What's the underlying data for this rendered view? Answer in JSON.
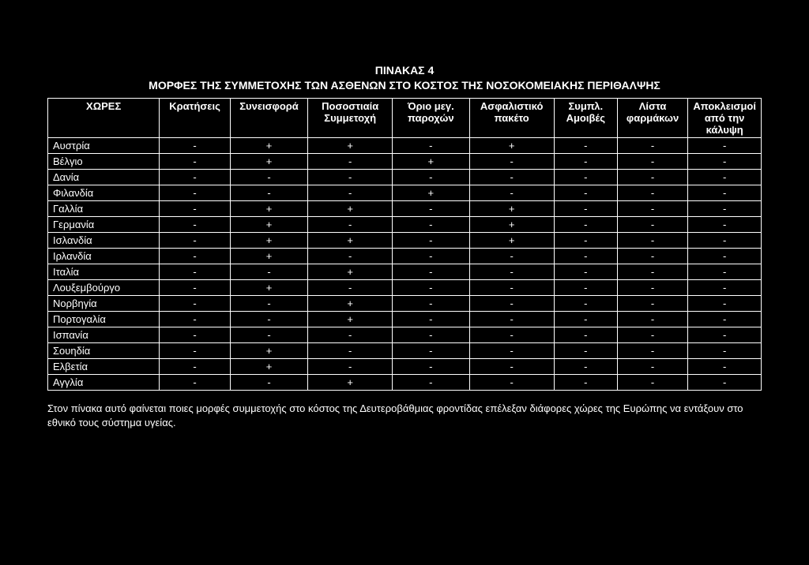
{
  "title_line1": "ΠΙΝΑΚΑΣ 4",
  "title_line2": "ΜΟΡΦΕΣ ΤΗΣ ΣΥΜΜΕΤΟΧΗΣ ΤΩΝ ΑΣΘΕΝΩΝ ΣΤΟ ΚΟΣΤΟΣ ΤΗΣ ΝΟΣΟΚΟΜΕΙΑΚΗΣ ΠΕΡΙΘΑΛΨΗΣ",
  "caption": "Στον πίνακα αυτό φαίνεται ποιες μορφές συμμετοχής στο κόστος της Δευτεροβάθμιας φροντίδας επέλεξαν διάφορες χώρες της Ευρώπης να εντάξουν στο εθνικό τους σύστημα υγείας.",
  "columns": [
    "ΧΩΡΕΣ",
    "Κρατήσεις",
    "Συνεισφορά",
    "Ποσοστιαία Συμμετοχή",
    "Όριο μεγ. παροχών",
    "Ασφαλιστικό πακέτο",
    "Συμπλ. Αμοιβές",
    "Λίστα φαρμάκων",
    "Αποκλεισμοί από την κάλυψη"
  ],
  "rows": [
    {
      "country": "Αυστρία",
      "v": [
        "-",
        "+",
        "+",
        "-",
        "+",
        "-",
        "-",
        "-"
      ]
    },
    {
      "country": "Βέλγιο",
      "v": [
        "-",
        "+",
        "-",
        "+",
        "-",
        "-",
        "-",
        "-"
      ]
    },
    {
      "country": "Δανία",
      "v": [
        "-",
        "-",
        "-",
        "-",
        "-",
        "-",
        "-",
        "-"
      ]
    },
    {
      "country": "Φιλανδία",
      "v": [
        "-",
        "-",
        "-",
        "+",
        "-",
        "-",
        "-",
        "-"
      ]
    },
    {
      "country": "Γαλλία",
      "v": [
        "-",
        "+",
        "+",
        "-",
        "+",
        "-",
        "-",
        "-"
      ]
    },
    {
      "country": "Γερμανία",
      "v": [
        "-",
        "+",
        "-",
        "-",
        "+",
        "-",
        "-",
        "-"
      ]
    },
    {
      "country": "Ισλανδία",
      "v": [
        "-",
        "+",
        "+",
        "-",
        "+",
        "-",
        "-",
        "-"
      ]
    },
    {
      "country": "Ιρλανδία",
      "v": [
        "-",
        "+",
        "-",
        "-",
        "-",
        "-",
        "-",
        "-"
      ]
    },
    {
      "country": "Ιταλία",
      "v": [
        "-",
        "-",
        "+",
        "-",
        "-",
        "-",
        "-",
        "-"
      ]
    },
    {
      "country": "Λουξεμβούργο",
      "v": [
        "-",
        "+",
        "-",
        "-",
        "-",
        "-",
        "-",
        "-"
      ]
    },
    {
      "country": "Νορβηγία",
      "v": [
        "-",
        "-",
        "+",
        "-",
        "-",
        "-",
        "-",
        "-"
      ]
    },
    {
      "country": "Πορτογαλία",
      "v": [
        "-",
        "-",
        "+",
        "-",
        "-",
        "-",
        "-",
        "-"
      ]
    },
    {
      "country": "Ισπανία",
      "v": [
        "-",
        "-",
        "-",
        "-",
        "-",
        "-",
        "-",
        "-"
      ]
    },
    {
      "country": "Σουηδία",
      "v": [
        "-",
        "+",
        "-",
        "-",
        "-",
        "-",
        "-",
        "-"
      ]
    },
    {
      "country": "Ελβετία",
      "v": [
        "-",
        "+",
        "-",
        "-",
        "-",
        "-",
        "-",
        "-"
      ]
    },
    {
      "country": "Αγγλία",
      "v": [
        "-",
        "-",
        "+",
        "-",
        "-",
        "-",
        "-",
        "-"
      ]
    }
  ],
  "style": {
    "colors": {
      "bg": "#000000",
      "fg": "#ffffff",
      "border": "#ffffff"
    },
    "font_family": "Arial",
    "title_fontsize": 14,
    "body_fontsize": 13,
    "col_widths_pct": [
      16,
      10,
      11,
      12,
      11,
      12,
      9,
      10,
      12
    ],
    "n_cols": 9,
    "n_rows": 16
  }
}
